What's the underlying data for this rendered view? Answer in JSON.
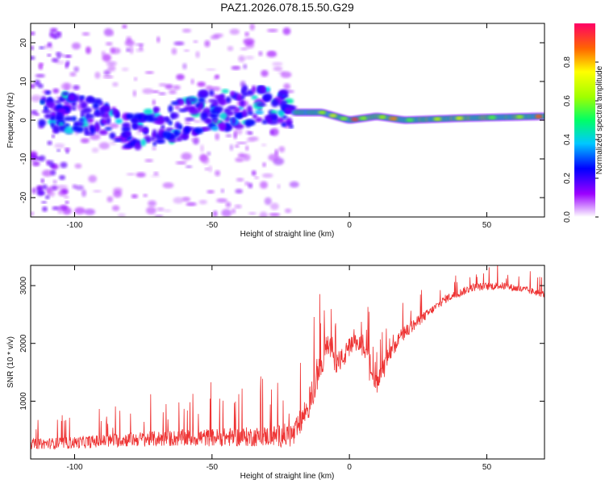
{
  "title": "PAZ1.2026.078.15.50.G29",
  "chart_data": [
    {
      "type": "heatmap",
      "xlabel": "Height of straight line (km)",
      "ylabel": "Frequency (Hz)",
      "xlim": [
        -116,
        71
      ],
      "ylim": [
        -25,
        25
      ],
      "xticks": [
        -100,
        -50,
        0,
        50
      ],
      "yticks": [
        20,
        10,
        0,
        -10,
        -20
      ],
      "colorbar": {
        "label": "Normalized spectral amplitude",
        "range": [
          0,
          1
        ],
        "ticks": [
          "0.0",
          "0.2",
          "0.4",
          "0.6",
          "0.8"
        ],
        "tick_values": [
          0.0,
          0.2,
          0.4,
          0.6,
          0.8
        ],
        "colormap": "rainbow"
      },
      "ridge_center": [
        {
          "x": -110,
          "y": 3
        },
        {
          "x": -95,
          "y": 1
        },
        {
          "x": -85,
          "y": -2
        },
        {
          "x": -75,
          "y": -3
        },
        {
          "x": -65,
          "y": -1
        },
        {
          "x": -55,
          "y": 2
        },
        {
          "x": -40,
          "y": 3
        },
        {
          "x": -30,
          "y": 4
        },
        {
          "x": -20,
          "y": 2
        },
        {
          "x": -10,
          "y": 2
        },
        {
          "x": 0,
          "y": 0
        },
        {
          "x": 10,
          "y": 1
        },
        {
          "x": 20,
          "y": 0
        },
        {
          "x": 40,
          "y": 0.5
        },
        {
          "x": 71,
          "y": 1
        }
      ]
    },
    {
      "type": "line",
      "xlabel": "Height of straight line (km)",
      "ylabel": "SNR (10 * v/v)",
      "xlim": [
        -116,
        71
      ],
      "ylim": [
        0,
        3350
      ],
      "xticks": [
        -100,
        -50,
        0,
        50
      ],
      "yticks": [
        1000,
        2000,
        3000
      ],
      "color": "#ee3333",
      "envelope": [
        {
          "x": -116,
          "y": 230
        },
        {
          "x": -100,
          "y": 250
        },
        {
          "x": -80,
          "y": 300
        },
        {
          "x": -60,
          "y": 320
        },
        {
          "x": -40,
          "y": 330
        },
        {
          "x": -20,
          "y": 350
        },
        {
          "x": -15,
          "y": 850
        },
        {
          "x": -10,
          "y": 1600
        },
        {
          "x": -8,
          "y": 1950
        },
        {
          "x": -5,
          "y": 1600
        },
        {
          "x": -2,
          "y": 1700
        },
        {
          "x": 0,
          "y": 1900
        },
        {
          "x": 5,
          "y": 1950
        },
        {
          "x": 8,
          "y": 1550
        },
        {
          "x": 10,
          "y": 1200
        },
        {
          "x": 12,
          "y": 1550
        },
        {
          "x": 18,
          "y": 2050
        },
        {
          "x": 25,
          "y": 2350
        },
        {
          "x": 35,
          "y": 2750
        },
        {
          "x": 45,
          "y": 2950
        },
        {
          "x": 55,
          "y": 2980
        },
        {
          "x": 65,
          "y": 2900
        },
        {
          "x": 71,
          "y": 2830
        }
      ],
      "noise_amplitude": [
        {
          "x": -116,
          "y": 180
        },
        {
          "x": -30,
          "y": 350
        },
        {
          "x": -15,
          "y": 500
        },
        {
          "x": 0,
          "y": 350
        },
        {
          "x": 15,
          "y": 300
        },
        {
          "x": 30,
          "y": 150
        },
        {
          "x": 71,
          "y": 120
        }
      ]
    }
  ]
}
